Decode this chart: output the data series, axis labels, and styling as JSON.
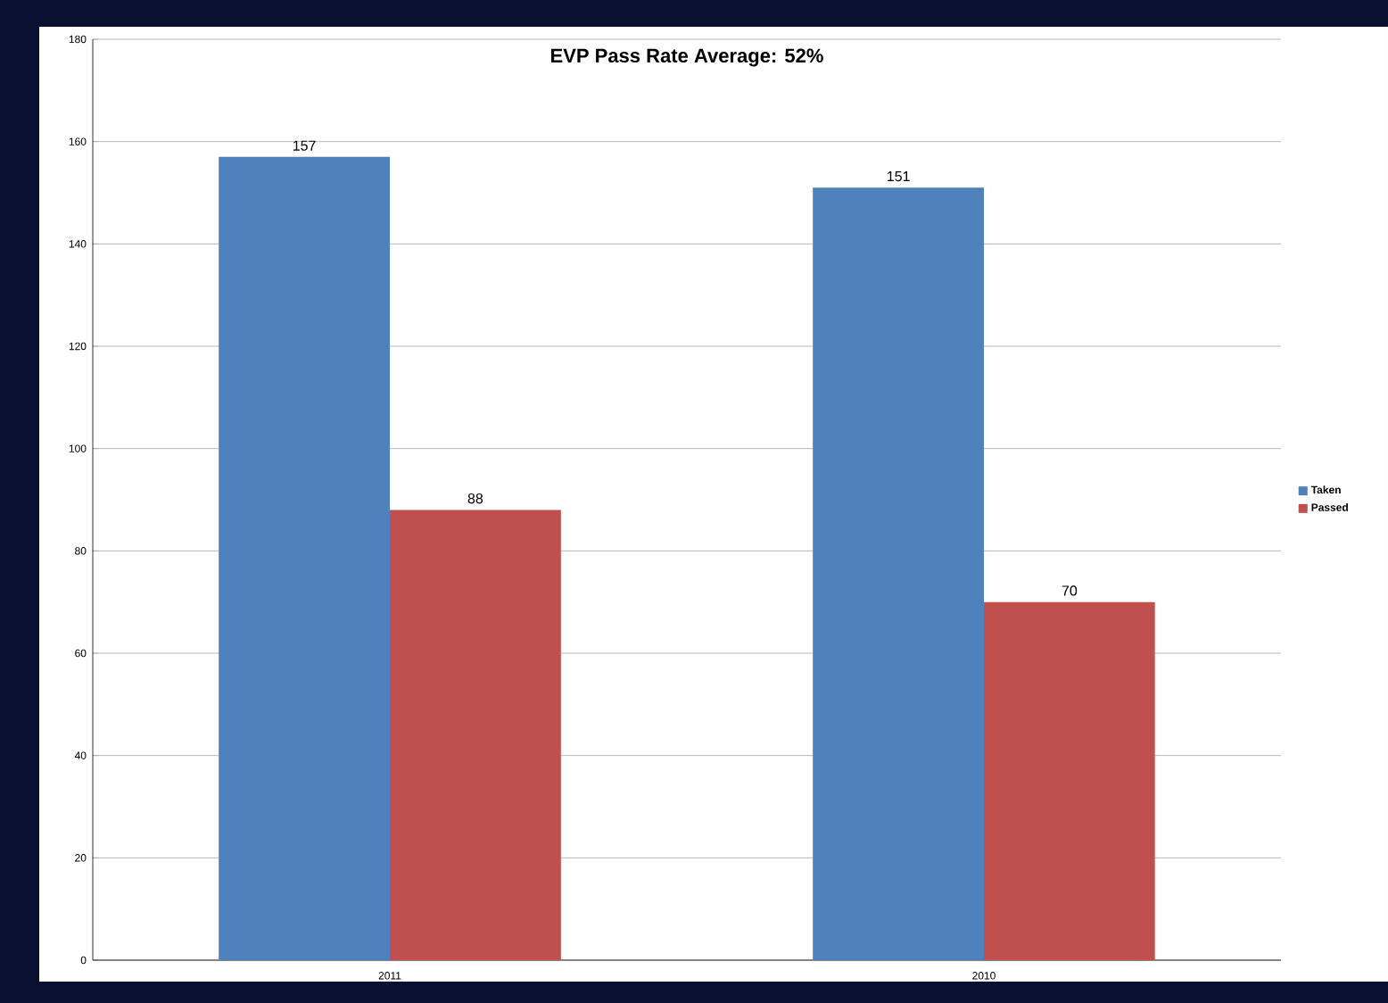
{
  "chart_data": {
    "type": "bar",
    "title": "EVP Pass Rate Average: 52%",
    "categories": [
      "2011",
      "2010"
    ],
    "series": [
      {
        "name": "Taken",
        "color": "#4f81bd",
        "values": [
          157,
          151
        ]
      },
      {
        "name": "Passed",
        "color": "#c0504d",
        "values": [
          88,
          70
        ]
      }
    ],
    "ylim": [
      0,
      180
    ],
    "yticks": [
      0,
      20,
      40,
      60,
      80,
      100,
      120,
      140,
      160,
      180
    ],
    "grid": "y",
    "legend": "right",
    "data_labels": true
  }
}
